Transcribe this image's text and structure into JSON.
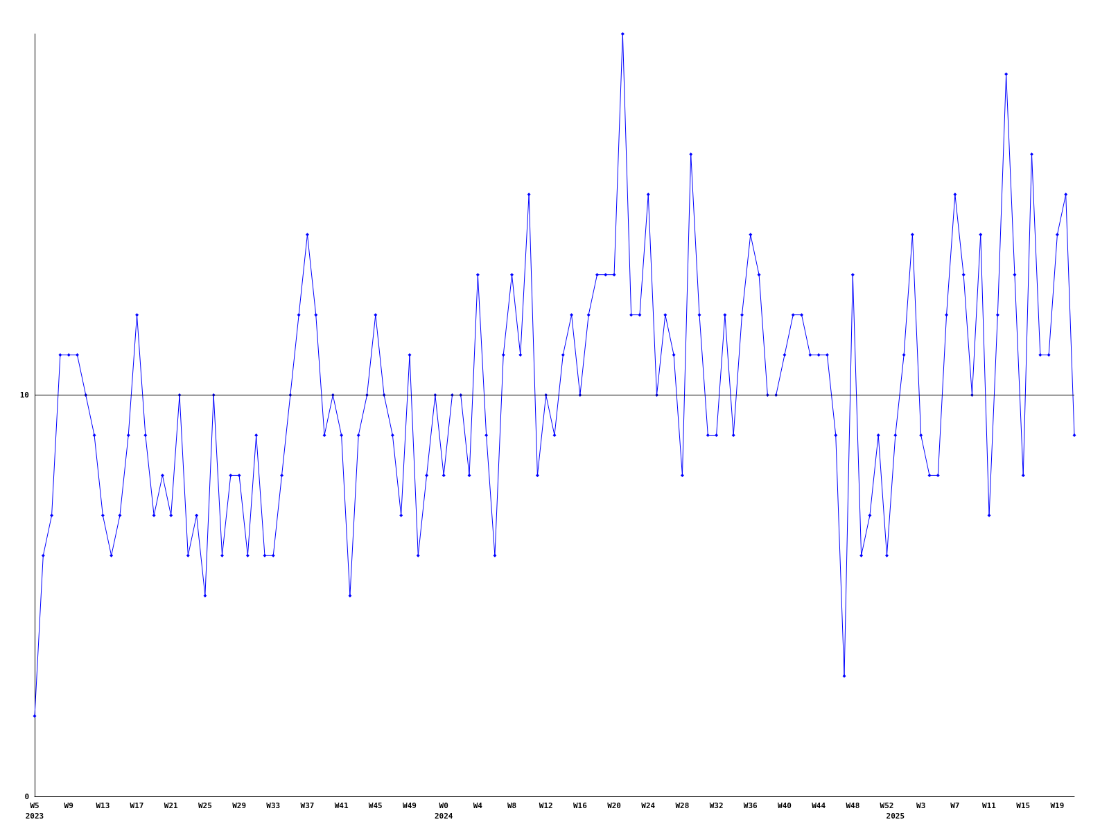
{
  "chart_data": {
    "type": "line",
    "categories": [
      "W5\n2023",
      null,
      null,
      null,
      "W9",
      null,
      null,
      null,
      "W13",
      null,
      null,
      null,
      "W17",
      null,
      null,
      null,
      "W21",
      null,
      null,
      null,
      "W25",
      null,
      null,
      null,
      "W29",
      null,
      null,
      null,
      "W33",
      null,
      null,
      null,
      "W37",
      null,
      null,
      null,
      "W41",
      null,
      null,
      null,
      "W45",
      null,
      null,
      null,
      "W49",
      null,
      null,
      null,
      "W0\n2024",
      null,
      null,
      null,
      "W4",
      null,
      null,
      null,
      "W8",
      null,
      null,
      null,
      "W12",
      null,
      null,
      null,
      "W16",
      null,
      null,
      null,
      "W20",
      null,
      null,
      null,
      "W24",
      null,
      null,
      null,
      "W28",
      null,
      null,
      null,
      "W32",
      null,
      null,
      null,
      "W36",
      null,
      null,
      null,
      "W40",
      null,
      null,
      null,
      "W44",
      null,
      null,
      null,
      "W48",
      null,
      null,
      null,
      "W52",
      "\n2025",
      null,
      null,
      "W3",
      null,
      null,
      null,
      "W7",
      null,
      null,
      null,
      "W11",
      null,
      null,
      null,
      "W15",
      null,
      null,
      null,
      "W19",
      null,
      null
    ],
    "series": [
      {
        "color": "#0000ff",
        "values": [
          2,
          6,
          7,
          11,
          11,
          11,
          10,
          9,
          7,
          6,
          7,
          9,
          12,
          9,
          7,
          8,
          7,
          10,
          6,
          7,
          5,
          10,
          6,
          8,
          8,
          6,
          9,
          6,
          6,
          8,
          10,
          12,
          14,
          12,
          9,
          10,
          9,
          5,
          9,
          10,
          12,
          10,
          9,
          7,
          11,
          6,
          8,
          10,
          8,
          10,
          10,
          8,
          13,
          9,
          6,
          11,
          13,
          11,
          15,
          8,
          10,
          9,
          11,
          12,
          10,
          12,
          13,
          13,
          13,
          19,
          12,
          12,
          15,
          10,
          12,
          11,
          8,
          16,
          12,
          9,
          9,
          12,
          9,
          12,
          14,
          13,
          10,
          10,
          11,
          12,
          12,
          11,
          11,
          11,
          9,
          3,
          13,
          6,
          7,
          9,
          6,
          9,
          11,
          14,
          9,
          8,
          8,
          12,
          15,
          13,
          10,
          14,
          7,
          12,
          18,
          13,
          8,
          16,
          11,
          11,
          14,
          15,
          9
        ]
      }
    ],
    "ylim": [
      0,
      19
    ],
    "yticks": [
      0,
      10
    ],
    "grid": false,
    "marker": "diamond",
    "line_style": "solid",
    "ref_lines": [
      {
        "axis": "y",
        "value": 10,
        "color": "#000000"
      }
    ]
  }
}
